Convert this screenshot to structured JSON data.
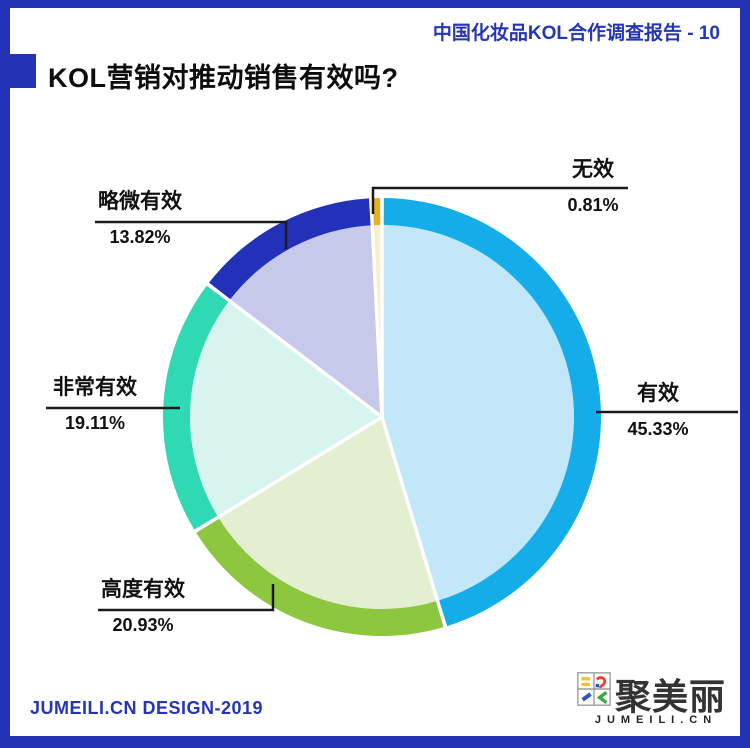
{
  "header": {
    "report_title": "中国化妆品KOL合作调查报告 - 10"
  },
  "title": {
    "text": "KOL营销对推动销售有效吗?"
  },
  "chart_data": {
    "type": "pie",
    "title": "KOL营销对推动销售有效吗?",
    "unit": "%",
    "clockwise": true,
    "start_angle_deg": 0,
    "donut_ring": true,
    "slices": [
      {
        "label": "有效",
        "value": 45.33,
        "pct_text": "45.33%",
        "ring_color": "#15ADE9",
        "fill_color": "#C2E7F8"
      },
      {
        "label": "高度有效",
        "value": 20.93,
        "pct_text": "20.93%",
        "ring_color": "#8DC63F",
        "fill_color": "#E4EFD2"
      },
      {
        "label": "非常有效",
        "value": 19.11,
        "pct_text": "19.11%",
        "ring_color": "#2ED9B4",
        "fill_color": "#D7F5EE"
      },
      {
        "label": "略微有效",
        "value": 13.82,
        "pct_text": "13.82%",
        "ring_color": "#2331B8",
        "fill_color": "#C6C9E9"
      },
      {
        "label": "无效",
        "value": 0.81,
        "pct_text": "0.81%",
        "ring_color": "#E8B021",
        "fill_color": "#F8EEC8"
      }
    ]
  },
  "footer": {
    "credit": "JUMEILI.CN DESIGN-2019"
  },
  "logo": {
    "brand": "聚美丽",
    "domain": "JUMEILI.CN"
  },
  "colors": {
    "accent": "#2535B8",
    "frame": "#2433B6",
    "leader_line": "#1a1a1a"
  }
}
